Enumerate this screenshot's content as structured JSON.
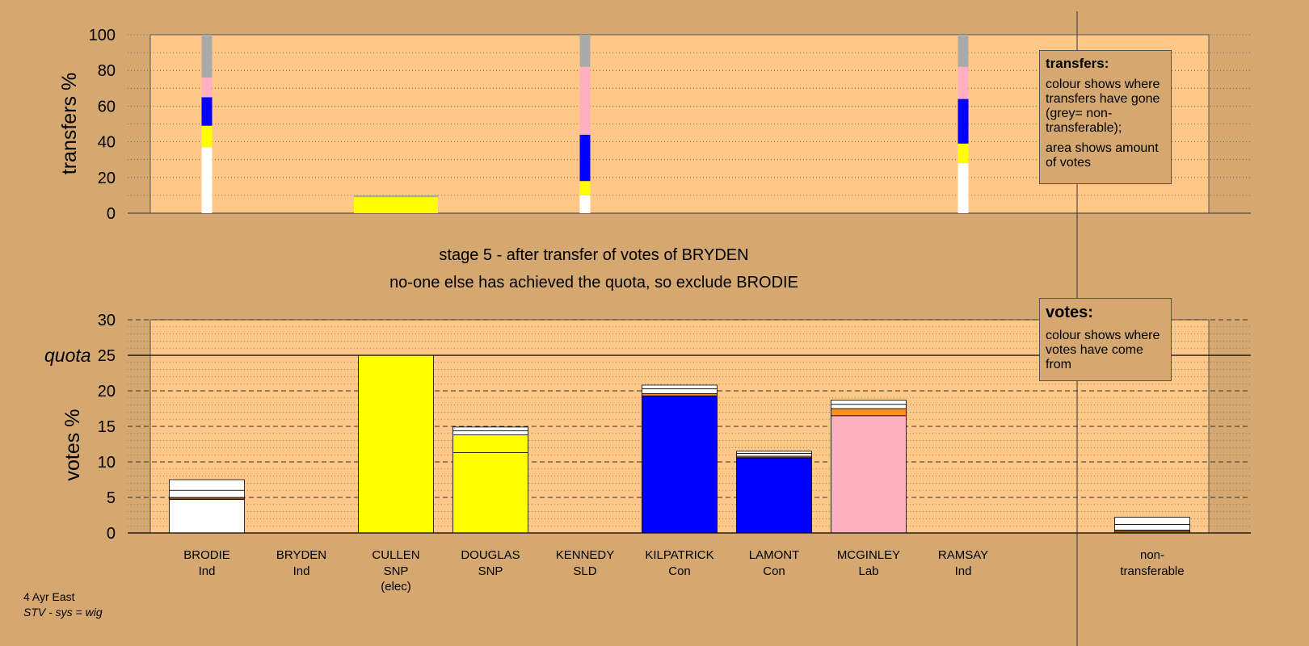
{
  "chart_data": [
    {
      "type": "bar",
      "panel": "transfers",
      "ylabel": "transfers %",
      "ylim": [
        0,
        100
      ],
      "yticks": [
        0,
        20,
        40,
        60,
        80,
        100
      ],
      "grid": "dotted",
      "stacked": true,
      "series_colors": {
        "white": "#ffffff",
        "yellow": "#ffff00",
        "blue": "#0000ff",
        "pink": "#ffb0c0",
        "grey": "#aaaaaa"
      },
      "bars": [
        {
          "candidate": "BRODIE",
          "width": "thin",
          "segments": [
            {
              "color": "white",
              "value": 37
            },
            {
              "color": "yellow",
              "value": 12
            },
            {
              "color": "blue",
              "value": 16
            },
            {
              "color": "pink",
              "value": 11
            },
            {
              "color": "grey",
              "value": 24
            }
          ]
        },
        {
          "candidate": "CULLEN",
          "width": "wide",
          "segments": [
            {
              "color": "yellow",
              "value": 9
            },
            {
              "color": "grey",
              "value": 1
            }
          ]
        },
        {
          "candidate": "KENNEDY",
          "width": "thin",
          "segments": [
            {
              "color": "white",
              "value": 10
            },
            {
              "color": "yellow",
              "value": 8
            },
            {
              "color": "blue",
              "value": 26
            },
            {
              "color": "pink",
              "value": 38
            },
            {
              "color": "grey",
              "value": 18
            }
          ]
        },
        {
          "candidate": "RAMSAY",
          "width": "thin",
          "segments": [
            {
              "color": "white",
              "value": 28
            },
            {
              "color": "yellow",
              "value": 11
            },
            {
              "color": "blue",
              "value": 25
            },
            {
              "color": "pink",
              "value": 18
            },
            {
              "color": "grey",
              "value": 18
            }
          ]
        }
      ]
    },
    {
      "type": "bar",
      "panel": "votes",
      "ylabel": "votes %",
      "ylim": [
        0,
        30
      ],
      "yticks": [
        0,
        5,
        10,
        15,
        20,
        25,
        30
      ],
      "quota": 25,
      "quota_label": "quota",
      "grid": "dashed",
      "stacked": true,
      "categories": [
        {
          "name": "BRODIE",
          "party": "Ind",
          "extra": "",
          "segments": [
            {
              "color": "white",
              "value": 4.7
            },
            {
              "color": "brown",
              "value": 0.3
            },
            {
              "color": "white",
              "value": 1.0
            },
            {
              "color": "white",
              "value": 1.5
            }
          ]
        },
        {
          "name": "BRYDEN",
          "party": "Ind",
          "extra": "",
          "segments": []
        },
        {
          "name": "CULLEN",
          "party": "SNP",
          "extra": "(elec)",
          "segments": [
            {
              "color": "yellow",
              "value": 25.0
            }
          ]
        },
        {
          "name": "DOUGLAS",
          "party": "SNP",
          "extra": "",
          "segments": [
            {
              "color": "yellow",
              "value": 11.3
            },
            {
              "color": "yellow",
              "value": 2.5
            },
            {
              "color": "white",
              "value": 0.6
            },
            {
              "color": "white",
              "value": 0.5
            }
          ]
        },
        {
          "name": "KENNEDY",
          "party": "SLD",
          "extra": "",
          "segments": []
        },
        {
          "name": "KILPATRICK",
          "party": "Con",
          "extra": "",
          "segments": [
            {
              "color": "blue",
              "value": 19.3
            },
            {
              "color": "orange",
              "value": 0.3
            },
            {
              "color": "white",
              "value": 0.7
            },
            {
              "color": "white",
              "value": 0.5
            }
          ]
        },
        {
          "name": "LAMONT",
          "party": "Con",
          "extra": "",
          "segments": [
            {
              "color": "blue",
              "value": 10.6
            },
            {
              "color": "orange",
              "value": 0.2
            },
            {
              "color": "white",
              "value": 0.4
            },
            {
              "color": "white",
              "value": 0.3
            }
          ]
        },
        {
          "name": "MCGINLEY",
          "party": "Lab",
          "extra": "",
          "segments": [
            {
              "color": "pink",
              "value": 16.5
            },
            {
              "color": "orange",
              "value": 1.0
            },
            {
              "color": "white",
              "value": 0.6
            },
            {
              "color": "white",
              "value": 0.6
            }
          ]
        },
        {
          "name": "RAMSAY",
          "party": "Ind",
          "extra": "",
          "segments": []
        },
        {
          "name": "non-",
          "party": "transferable",
          "extra": "",
          "segments": [
            {
              "color": "brown",
              "value": 0.4
            },
            {
              "color": "white",
              "value": 0.8
            },
            {
              "color": "white",
              "value": 1.0
            }
          ]
        }
      ],
      "series_colors": {
        "white": "#ffffff",
        "yellow": "#ffff00",
        "blue": "#0000ff",
        "pink": "#ffb0c0",
        "orange": "#ff9020",
        "brown": "#8b5a00"
      }
    }
  ],
  "stage_text": {
    "line1": "stage 5 - after transfer of votes of BRYDEN",
    "line2": "no-one else has achieved the quota, so exclude BRODIE"
  },
  "legend_transfers": {
    "title": "transfers:",
    "text1": "colour shows where transfers have gone (grey= non-transferable);",
    "text2": "area shows amount of votes"
  },
  "legend_votes": {
    "title": "votes:",
    "text1": "colour shows where votes have come from"
  },
  "footer": {
    "line1": "4 Ayr East",
    "line2": "STV - sys = wig"
  },
  "colors": {
    "background": "#d4a870",
    "plot_area": "#ffc888"
  }
}
